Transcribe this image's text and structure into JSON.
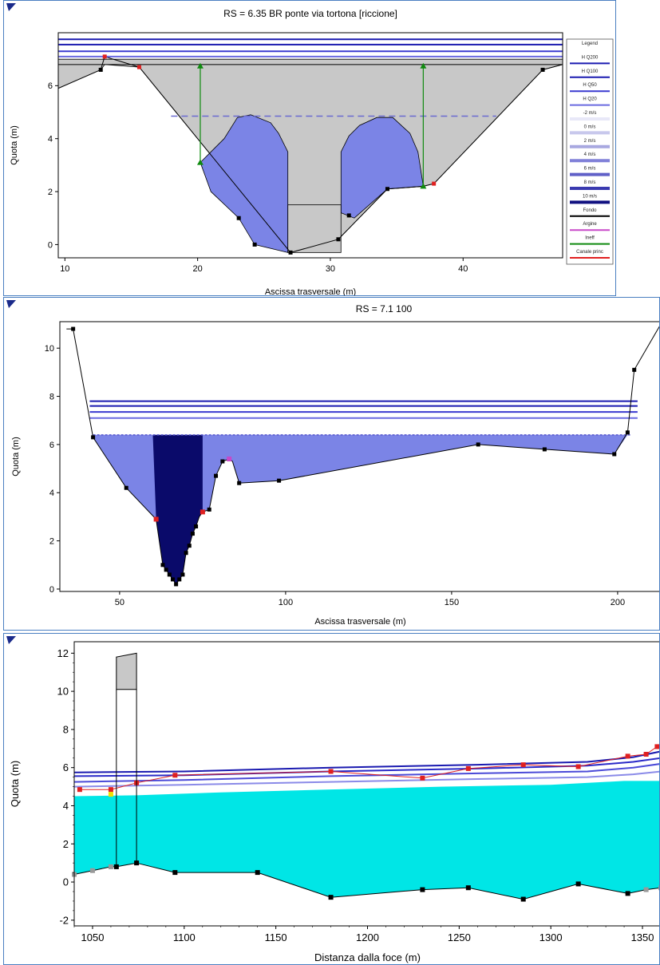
{
  "chart_data": [
    {
      "type": "area",
      "title": "RS = 6.35     BR     ponte via tortona [riccione]",
      "xlabel": "Ascissa trasversale (m)",
      "ylabel": "Quota (m)",
      "xlim": [
        9.5,
        47.5
      ],
      "ylim": [
        -0.5,
        8.0
      ],
      "xticks": [
        10,
        20,
        30,
        40
      ],
      "yticks": [
        0,
        2,
        4,
        6
      ],
      "water_levels": [
        {
          "name": "H Q200",
          "y": 7.75,
          "color": "#1a1ab0"
        },
        {
          "name": "H Q100",
          "y": 7.55,
          "color": "#1a1ab0"
        },
        {
          "name": "H Q50",
          "y": 7.3,
          "color": "#3a3ad0"
        },
        {
          "name": "H Q20",
          "y": 7.1,
          "color": "#6a6ae0"
        }
      ],
      "ground": {
        "x": [
          9.5,
          12.7,
          13.0,
          15.6,
          27.0,
          30.6,
          34.3,
          37.0,
          37.8,
          46.0,
          47.5
        ],
        "y": [
          5.9,
          6.6,
          7.1,
          6.7,
          -0.3,
          0.2,
          2.1,
          2.2,
          2.3,
          6.6,
          6.8
        ]
      },
      "deck": {
        "top": 7.0,
        "low": 6.8,
        "x_from": 9.5,
        "x_to": 47.5
      },
      "pier": {
        "x_left": 26.8,
        "x_right": 30.8,
        "top": 1.5
      },
      "flow_left": {
        "x": [
          20.2,
          21.0,
          23.1,
          24.3,
          26.8,
          26.8,
          26.1,
          25.5,
          24.0,
          23.0,
          22.0,
          20.2
        ],
        "y": [
          3.1,
          2.0,
          1.0,
          0.0,
          -0.3,
          3.5,
          4.2,
          4.6,
          4.9,
          4.8,
          4.0,
          3.1
        ]
      },
      "flow_right": {
        "x": [
          30.8,
          30.8,
          31.4,
          32.2,
          33.5,
          34.7,
          36.0,
          36.6,
          37.0,
          34.3,
          31.8
        ],
        "y": [
          1.2,
          3.5,
          4.1,
          4.5,
          4.8,
          4.8,
          4.2,
          3.5,
          2.2,
          2.1,
          1.0
        ]
      },
      "dashed_level": {
        "y": 4.85,
        "x_from": 18.0,
        "x_to": 42.5
      },
      "ineff_markers": [
        {
          "x": 20.2,
          "y_from": 3.1,
          "y_to": 6.8
        },
        {
          "x": 37.0,
          "y_from": 2.2,
          "y_to": 6.8
        }
      ],
      "points": {
        "x": [
          12.7,
          23.1,
          24.3,
          27.0,
          30.6,
          31.4,
          34.3,
          46.0
        ],
        "y": [
          6.6,
          1.0,
          0.0,
          -0.3,
          0.2,
          1.1,
          2.1,
          6.6
        ]
      },
      "bank_points": {
        "x": [
          13.0,
          15.6,
          37.8
        ],
        "y": [
          7.1,
          6.7,
          2.3
        ]
      },
      "legend": [
        "Legend",
        "H Q200",
        "H Q100",
        "H Q50",
        "H Q20",
        "-2 m/s",
        "0 m/s",
        "2 m/s",
        "4 m/s",
        "6 m/s",
        "8 m/s",
        "10 m/s",
        "Fondo",
        "Argine",
        "Ineff",
        "Canale princ"
      ],
      "colors": {
        "deck": "#c8c8c8",
        "flow": "#7b84e6",
        "ineff": "#0f8a0f",
        "bank": "#e02020"
      }
    },
    {
      "type": "area",
      "title": "RS = 7.1     100",
      "xlabel": "Ascissa trasversale (m)",
      "ylabel": "Quota (m)",
      "xlim": [
        32,
        213
      ],
      "ylim": [
        -0.1,
        11.1
      ],
      "xticks": [
        50,
        100,
        150,
        200
      ],
      "yticks": [
        0,
        2,
        4,
        6,
        8,
        10
      ],
      "water_levels": [
        {
          "name": "H Q200",
          "y": 7.8,
          "color": "#1a1ab0"
        },
        {
          "name": "H Q100",
          "y": 7.6,
          "color": "#1a1ab0"
        },
        {
          "name": "H Q50",
          "y": 7.35,
          "color": "#3a3ad0"
        },
        {
          "name": "H Q20",
          "y": 7.1,
          "color": "#6a6ae0"
        }
      ],
      "water_surface": 6.4,
      "ground": {
        "x": [
          34,
          36,
          42,
          52,
          61,
          63,
          64,
          65,
          66,
          67,
          68,
          69,
          70,
          71,
          72,
          73,
          74,
          75,
          77,
          79,
          81,
          83,
          84,
          86,
          98,
          158,
          178,
          199,
          203,
          205,
          213
        ],
        "y": [
          10.8,
          10.8,
          6.3,
          4.2,
          2.9,
          1.0,
          0.8,
          0.6,
          0.4,
          0.2,
          0.4,
          0.6,
          1.5,
          1.8,
          2.3,
          2.6,
          3.0,
          3.2,
          3.3,
          4.7,
          5.3,
          5.4,
          5.3,
          4.4,
          4.5,
          6.0,
          5.8,
          5.6,
          6.5,
          9.1,
          11.0
        ]
      },
      "main_channel": {
        "x_from": 60,
        "x_to": 75
      },
      "points": {
        "x": [
          36,
          42,
          52,
          63,
          64,
          65,
          66,
          67,
          68,
          69,
          70,
          71,
          72,
          73,
          77,
          79,
          81,
          86,
          98,
          158,
          178,
          199,
          203,
          205
        ],
        "y": [
          10.8,
          6.3,
          4.2,
          1.0,
          0.8,
          0.6,
          0.4,
          0.2,
          0.4,
          0.6,
          1.5,
          1.8,
          2.3,
          2.6,
          3.3,
          4.7,
          5.3,
          4.4,
          4.5,
          6.0,
          5.8,
          5.6,
          6.5,
          9.1
        ]
      },
      "bank_points": {
        "x": [
          61,
          75,
          83
        ],
        "y": [
          2.9,
          3.2,
          5.4
        ]
      },
      "colors": {
        "flow": "#7b84e6",
        "main": "#0a0a6a",
        "bank": "#e02020",
        "levee": "#c848c8"
      }
    },
    {
      "type": "area",
      "xlabel": "Distanza dalla foce (m)",
      "ylabel": "Quota (m)",
      "xlim": [
        1040,
        1360
      ],
      "ylim": [
        -2.3,
        12.6
      ],
      "xticks": [
        1050,
        1100,
        1150,
        1200,
        1250,
        1300,
        1350
      ],
      "yticks": [
        -2,
        0,
        2,
        4,
        6,
        8,
        10,
        12
      ],
      "bed": {
        "x": [
          1040,
          1050,
          1060,
          1063,
          1074,
          1095,
          1140,
          1180,
          1230,
          1255,
          1285,
          1315,
          1342,
          1352,
          1360
        ],
        "y": [
          0.4,
          0.6,
          0.8,
          0.8,
          1.0,
          0.5,
          0.5,
          -0.8,
          -0.4,
          -0.3,
          -0.9,
          -0.1,
          -0.6,
          -0.4,
          -0.3
        ]
      },
      "water": {
        "x": [
          1040,
          1074,
          1120,
          1180,
          1240,
          1300,
          1340,
          1360
        ],
        "y": [
          4.5,
          4.55,
          4.7,
          4.85,
          5.0,
          5.1,
          5.3,
          5.3
        ]
      },
      "water_levels": [
        {
          "name": "H Q200",
          "x": [
            1040,
            1100,
            1180,
            1260,
            1320,
            1345,
            1360
          ],
          "y": [
            5.75,
            5.8,
            6.0,
            6.15,
            6.3,
            6.55,
            6.85
          ],
          "color": "#1a1ab0"
        },
        {
          "name": "H Q100",
          "x": [
            1040,
            1100,
            1180,
            1260,
            1320,
            1345,
            1360
          ],
          "y": [
            5.55,
            5.6,
            5.8,
            5.95,
            6.1,
            6.3,
            6.5
          ],
          "color": "#2a2ac8"
        },
        {
          "name": "H Q50",
          "x": [
            1040,
            1100,
            1180,
            1260,
            1320,
            1345,
            1360
          ],
          "y": [
            5.25,
            5.35,
            5.55,
            5.7,
            5.8,
            6.0,
            6.2
          ],
          "color": "#4a4ad8"
        },
        {
          "name": "H Q20",
          "x": [
            1040,
            1100,
            1180,
            1260,
            1320,
            1345,
            1360
          ],
          "y": [
            5.0,
            5.1,
            5.25,
            5.4,
            5.5,
            5.65,
            5.8
          ],
          "color": "#8a8ae8"
        }
      ],
      "bank_line": {
        "x": [
          1043,
          1060,
          1074,
          1095,
          1180,
          1230,
          1255,
          1285,
          1315,
          1342,
          1352,
          1358
        ],
        "y": [
          4.85,
          4.85,
          5.2,
          5.6,
          5.8,
          5.45,
          5.95,
          6.15,
          6.05,
          6.6,
          6.7,
          7.1
        ]
      },
      "bridge": {
        "x_left": 1063,
        "x_right": 1074,
        "low": 10.1,
        "top_left": 11.8,
        "top_right": 12.0
      },
      "yellow_point": {
        "x": 1060,
        "y": 4.6
      },
      "colors": {
        "water": "#00e6e6",
        "bridge": "#c8c8c8",
        "bank": "#e02020"
      }
    }
  ]
}
